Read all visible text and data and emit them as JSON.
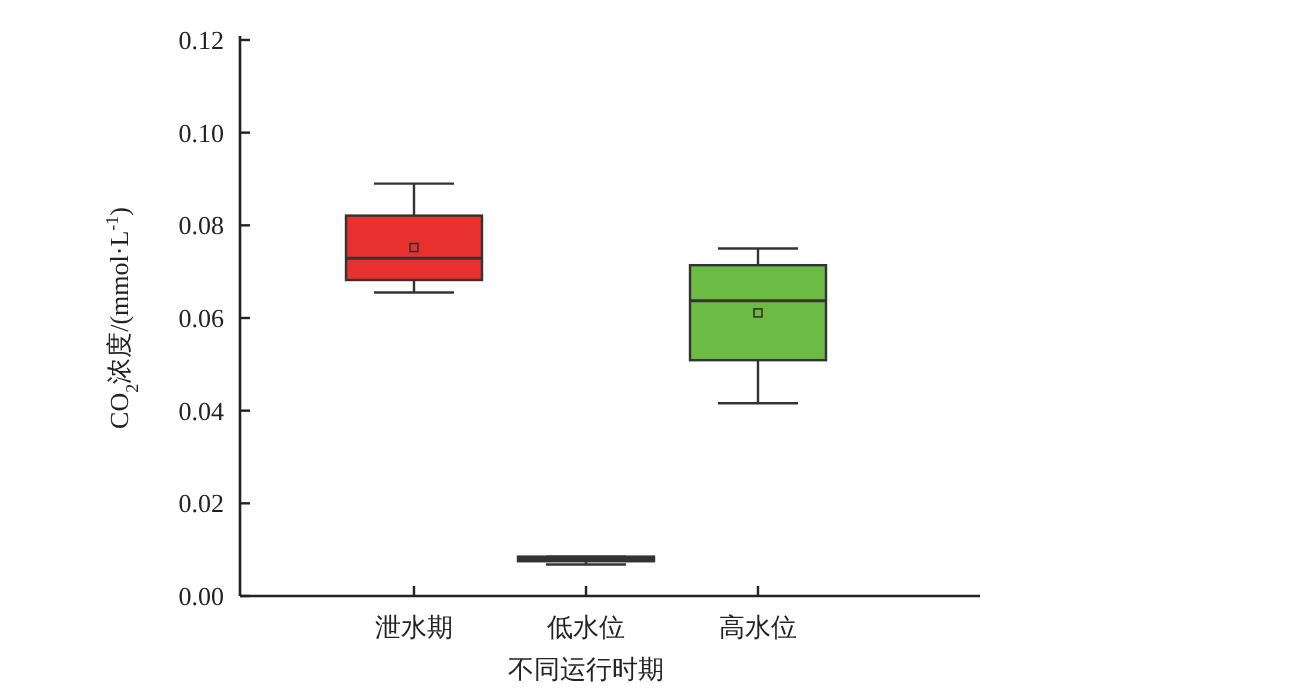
{
  "chart_data": {
    "type": "box",
    "xlabel": "不同运行时期",
    "ylabel": "CO$_{2}$浓度/(mmol·L$^{-1}$)",
    "categories": [
      "泄水期",
      "低水位",
      "高水位"
    ],
    "colors": [
      "#e8302e",
      "#2a2e4a",
      "#6cbb44"
    ],
    "boxes": [
      {
        "low": 0.0655,
        "q1": 0.0682,
        "median": 0.0729,
        "q3": 0.0821,
        "high": 0.089,
        "mean": 0.0752
      },
      {
        "low": 0.0068,
        "q1": 0.0075,
        "median": 0.0078,
        "q3": 0.0085,
        "high": 0.0085
      },
      {
        "low": 0.0416,
        "q1": 0.0509,
        "median": 0.0637,
        "q3": 0.0714,
        "high": 0.075,
        "mean": 0.0611
      }
    ],
    "ylim": [
      0,
      0.12
    ],
    "yticks": [
      {
        "value": 0,
        "label": "0.00"
      },
      {
        "value": 0.02,
        "label": "0.02"
      },
      {
        "value": 0.04,
        "label": "0.04"
      },
      {
        "value": 0.06,
        "label": "0.06"
      },
      {
        "value": 0.08,
        "label": "0.08"
      },
      {
        "value": 0.1,
        "label": "0.10"
      },
      {
        "value": 0.12,
        "label": "0.12"
      }
    ]
  }
}
